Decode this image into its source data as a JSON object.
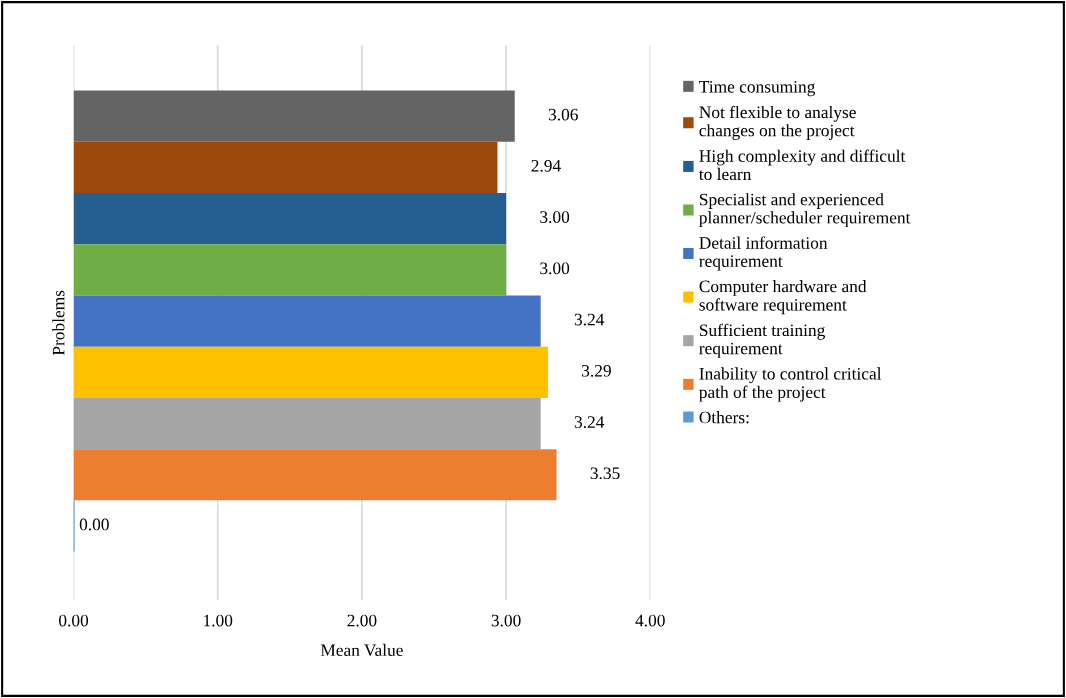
{
  "chart_data": {
    "type": "bar",
    "orientation": "horizontal",
    "xlabel": "Mean Value",
    "ylabel": "Problems",
    "categories": [
      null
    ],
    "series": [
      {
        "name": "Time consuming",
        "color": "#646464",
        "values": [
          3.06
        ],
        "value_labels": [
          "3.06"
        ]
      },
      {
        "name": "Not flexible to analyse\nchanges on the project",
        "color": "#9e480e",
        "values": [
          2.94
        ],
        "value_labels": [
          "2.94"
        ]
      },
      {
        "name": "High complexity and difficult\nto learn",
        "color": "#255e91",
        "values": [
          3.0
        ],
        "value_labels": [
          "3.00"
        ]
      },
      {
        "name": "Specialist and experienced\nplanner/scheduler requirement",
        "color": "#70ad47",
        "values": [
          3.0
        ],
        "value_labels": [
          "3.00"
        ]
      },
      {
        "name": "Detail information\nrequirement",
        "color": "#4472c4",
        "values": [
          3.24
        ],
        "value_labels": [
          "3.24"
        ]
      },
      {
        "name": "Computer hardware and\nsoftware requirement",
        "color": "#ffc000",
        "values": [
          3.29
        ],
        "value_labels": [
          "3.29"
        ]
      },
      {
        "name": "Sufficient training\nrequirement",
        "color": "#a5a5a5",
        "values": [
          3.24
        ],
        "value_labels": [
          "3.24"
        ]
      },
      {
        "name": "Inability to control critical\npath of the project",
        "color": "#ed7d31",
        "values": [
          3.35
        ],
        "value_labels": [
          "3.35"
        ]
      },
      {
        "name": "Others:",
        "color": "#5b9bd5",
        "values": [
          0.0
        ],
        "value_labels": [
          "0.00"
        ]
      }
    ],
    "xlim": [
      0,
      4
    ],
    "xticks": [
      {
        "value": 0,
        "label": "0.00"
      },
      {
        "value": 1,
        "label": "1.00"
      },
      {
        "value": 2,
        "label": "2.00"
      },
      {
        "value": 3,
        "label": "3.00"
      },
      {
        "value": 4,
        "label": "4.00"
      }
    ],
    "grid": "x",
    "legend": "right"
  }
}
